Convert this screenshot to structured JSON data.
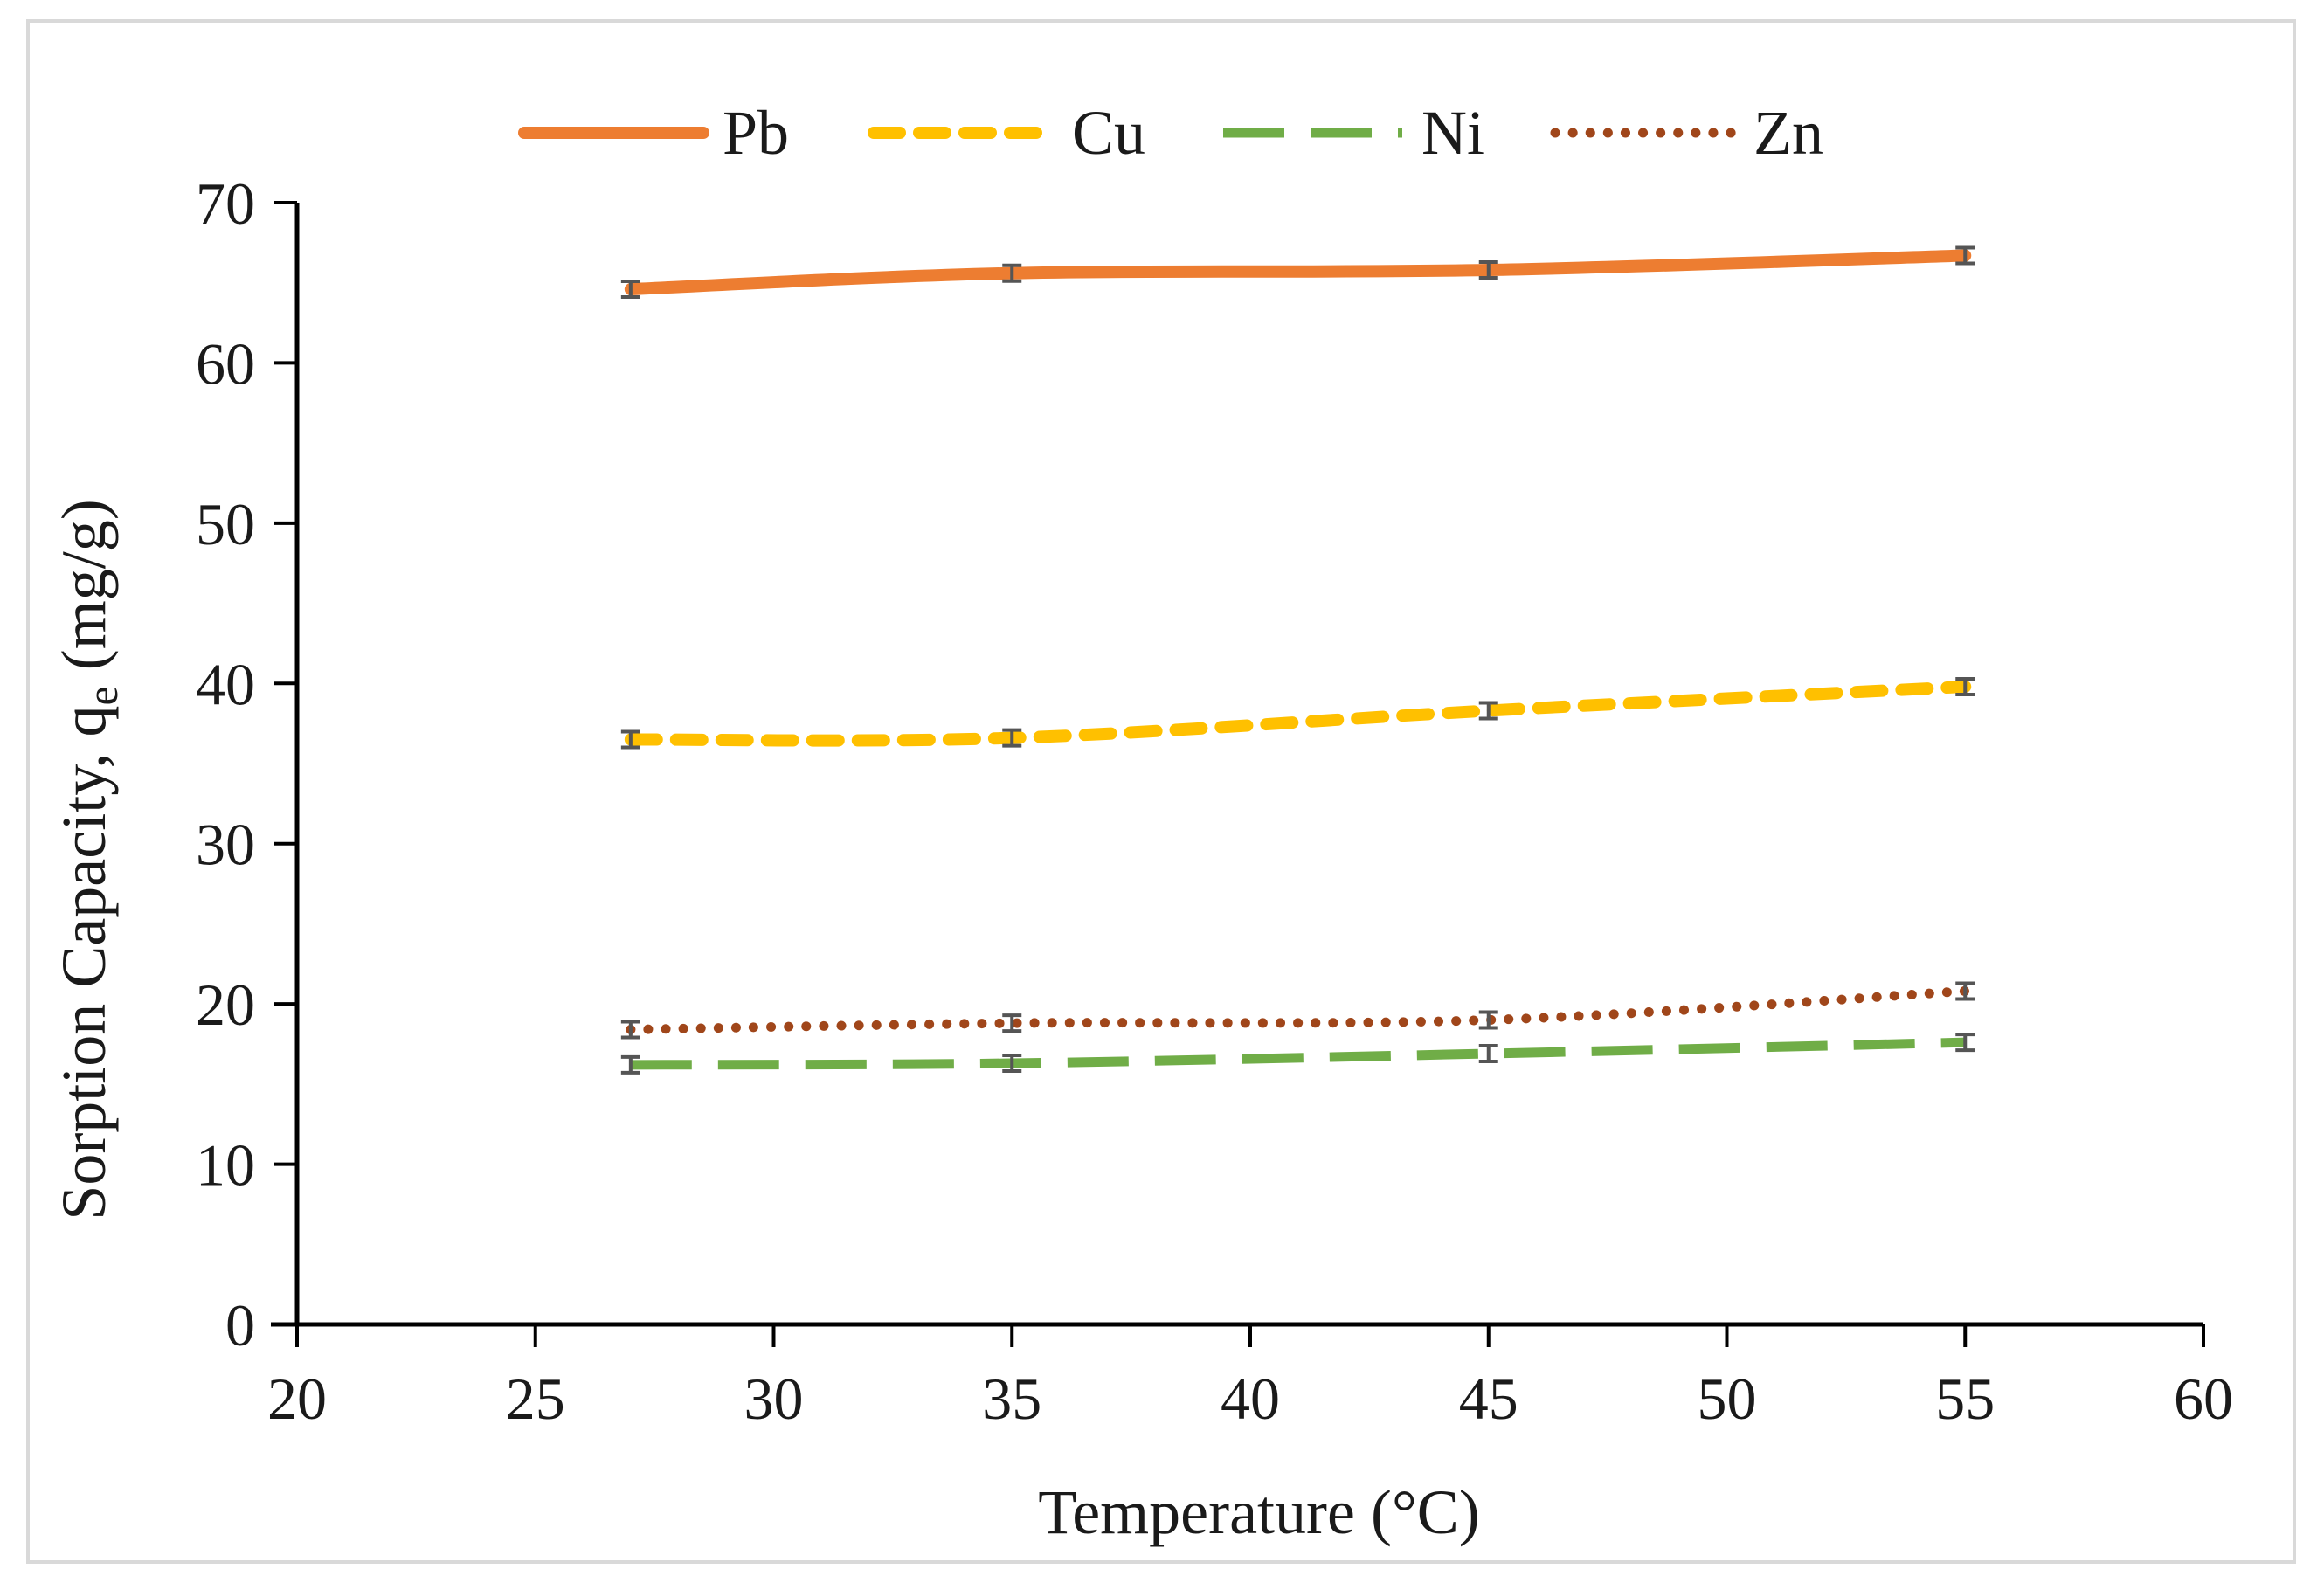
{
  "chart_data": {
    "type": "line",
    "title": "",
    "xlabel": "Temperature (°C)",
    "ylabel_main": "Sorption Capacity, q",
    "ylabel_sub": "e",
    "ylabel_tail": " (mg/g)",
    "xlim": [
      20,
      60
    ],
    "ylim": [
      0,
      70
    ],
    "x_ticks": [
      20,
      25,
      30,
      35,
      40,
      45,
      50,
      55,
      60
    ],
    "y_ticks": [
      0,
      10,
      20,
      30,
      40,
      50,
      60,
      70
    ],
    "grid": false,
    "legend_position": "top",
    "x": [
      27,
      35,
      45,
      55
    ],
    "series": [
      {
        "name": "Pb",
        "values": [
          64.6,
          65.6,
          65.8,
          66.7
        ],
        "color": "#ed7d31",
        "style": "solid"
      },
      {
        "name": "Cu",
        "values": [
          36.5,
          36.6,
          38.3,
          39.8
        ],
        "color": "#ffc000",
        "style": "dashed"
      },
      {
        "name": "Ni",
        "values": [
          16.2,
          16.3,
          16.9,
          17.6
        ],
        "color": "#70ad47",
        "style": "longdash"
      },
      {
        "name": "Zn",
        "values": [
          18.4,
          18.8,
          19.0,
          20.8
        ],
        "color": "#a0461a",
        "style": "dotted"
      }
    ],
    "errorbar_color": "#555555"
  }
}
